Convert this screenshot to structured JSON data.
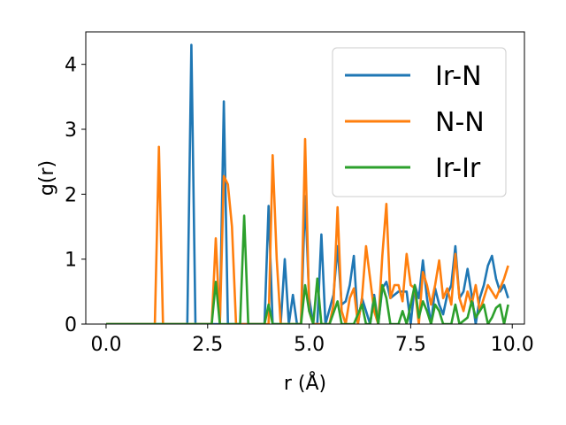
{
  "chart_data": {
    "type": "line",
    "title": "",
    "xlabel": "r (Å)",
    "ylabel": "g(r)",
    "xlim": [
      -0.5,
      10.3
    ],
    "ylim": [
      0,
      4.5
    ],
    "xticks": [
      0.0,
      2.5,
      5.0,
      7.5,
      10.0
    ],
    "xtick_labels": [
      "0.0",
      "2.5",
      "5.0",
      "7.5",
      "10.0"
    ],
    "yticks": [
      0,
      1,
      2,
      3,
      4
    ],
    "ytick_labels": [
      "0",
      "1",
      "2",
      "3",
      "4"
    ],
    "grid": false,
    "legend_position": "top-right",
    "series": [
      {
        "name": "Ir-N",
        "color": "#1f77b4",
        "points": [
          [
            0.0,
            0
          ],
          [
            1.9,
            0
          ],
          [
            2.0,
            0
          ],
          [
            2.1,
            4.3
          ],
          [
            2.2,
            0
          ],
          [
            2.8,
            0
          ],
          [
            2.9,
            3.43
          ],
          [
            3.0,
            0
          ],
          [
            3.9,
            0
          ],
          [
            4.0,
            1.82
          ],
          [
            4.1,
            0
          ],
          [
            4.3,
            0
          ],
          [
            4.4,
            1.0
          ],
          [
            4.5,
            0
          ],
          [
            4.6,
            0.45
          ],
          [
            4.7,
            0
          ],
          [
            4.8,
            0
          ],
          [
            4.9,
            1.97
          ],
          [
            5.0,
            0.4
          ],
          [
            5.1,
            0
          ],
          [
            5.2,
            0
          ],
          [
            5.3,
            1.38
          ],
          [
            5.4,
            0
          ],
          [
            5.6,
            0.45
          ],
          [
            5.7,
            1.2
          ],
          [
            5.8,
            0.3
          ],
          [
            5.9,
            0.35
          ],
          [
            6.0,
            0.6
          ],
          [
            6.1,
            1.05
          ],
          [
            6.2,
            0
          ],
          [
            6.3,
            0.4
          ],
          [
            6.5,
            0
          ],
          [
            6.6,
            0.45
          ],
          [
            6.7,
            0
          ],
          [
            6.8,
            0.55
          ],
          [
            6.9,
            0.65
          ],
          [
            7.0,
            0.4
          ],
          [
            7.1,
            0.45
          ],
          [
            7.2,
            0.5
          ],
          [
            7.4,
            0.5
          ],
          [
            7.5,
            0
          ],
          [
            7.6,
            0.6
          ],
          [
            7.7,
            0.4
          ],
          [
            7.8,
            0.98
          ],
          [
            7.9,
            0.4
          ],
          [
            8.0,
            0
          ],
          [
            8.1,
            0.55
          ],
          [
            8.2,
            0.3
          ],
          [
            8.3,
            0.15
          ],
          [
            8.4,
            0.45
          ],
          [
            8.5,
            0.6
          ],
          [
            8.6,
            1.2
          ],
          [
            8.7,
            0.4
          ],
          [
            8.8,
            0.5
          ],
          [
            8.9,
            0.85
          ],
          [
            9.0,
            0.45
          ],
          [
            9.1,
            0
          ],
          [
            9.2,
            0.4
          ],
          [
            9.3,
            0.6
          ],
          [
            9.4,
            0.9
          ],
          [
            9.5,
            1.05
          ],
          [
            9.6,
            0.7
          ],
          [
            9.7,
            0.5
          ],
          [
            9.8,
            0.6
          ],
          [
            9.9,
            0.4
          ]
        ]
      },
      {
        "name": "N-N",
        "color": "#ff7f0e",
        "points": [
          [
            0.0,
            0
          ],
          [
            1.2,
            0
          ],
          [
            1.3,
            2.73
          ],
          [
            1.4,
            0
          ],
          [
            2.6,
            0
          ],
          [
            2.7,
            1.32
          ],
          [
            2.8,
            0
          ],
          [
            2.9,
            2.28
          ],
          [
            3.0,
            2.15
          ],
          [
            3.1,
            1.5
          ],
          [
            3.2,
            0
          ],
          [
            4.0,
            0
          ],
          [
            4.1,
            2.6
          ],
          [
            4.2,
            1.0
          ],
          [
            4.3,
            0
          ],
          [
            4.8,
            0
          ],
          [
            4.9,
            2.85
          ],
          [
            5.0,
            0.2
          ],
          [
            5.1,
            0
          ],
          [
            5.5,
            0
          ],
          [
            5.6,
            0.3
          ],
          [
            5.7,
            1.8
          ],
          [
            5.8,
            0.2
          ],
          [
            5.9,
            0
          ],
          [
            6.0,
            0.4
          ],
          [
            6.1,
            0.55
          ],
          [
            6.2,
            0
          ],
          [
            6.3,
            0.4
          ],
          [
            6.4,
            1.2
          ],
          [
            6.5,
            0.7
          ],
          [
            6.6,
            0.2
          ],
          [
            6.7,
            0
          ],
          [
            6.8,
            1.05
          ],
          [
            6.9,
            1.85
          ],
          [
            7.0,
            0.4
          ],
          [
            7.1,
            0.6
          ],
          [
            7.2,
            0.6
          ],
          [
            7.3,
            0.35
          ],
          [
            7.4,
            1.08
          ],
          [
            7.5,
            0.6
          ],
          [
            7.6,
            0.55
          ],
          [
            7.7,
            0
          ],
          [
            7.8,
            0.8
          ],
          [
            7.9,
            0.6
          ],
          [
            8.0,
            0.3
          ],
          [
            8.1,
            0.6
          ],
          [
            8.2,
            0.98
          ],
          [
            8.3,
            0.4
          ],
          [
            8.4,
            0.55
          ],
          [
            8.5,
            0.3
          ],
          [
            8.6,
            1.08
          ],
          [
            8.7,
            0.4
          ],
          [
            8.8,
            0.2
          ],
          [
            8.9,
            0.5
          ],
          [
            9.0,
            0.3
          ],
          [
            9.1,
            0.6
          ],
          [
            9.2,
            0.2
          ],
          [
            9.3,
            0.4
          ],
          [
            9.4,
            0.6
          ],
          [
            9.5,
            0.5
          ],
          [
            9.6,
            0.4
          ],
          [
            9.7,
            0.55
          ],
          [
            9.8,
            0.7
          ],
          [
            9.9,
            0.9
          ]
        ]
      },
      {
        "name": "Ir-Ir",
        "color": "#2ca02c",
        "points": [
          [
            0.0,
            0
          ],
          [
            2.6,
            0
          ],
          [
            2.7,
            0.65
          ],
          [
            2.8,
            0
          ],
          [
            3.3,
            0
          ],
          [
            3.4,
            1.67
          ],
          [
            3.5,
            0
          ],
          [
            3.9,
            0
          ],
          [
            4.0,
            0.3
          ],
          [
            4.1,
            0
          ],
          [
            4.8,
            0
          ],
          [
            4.9,
            0.6
          ],
          [
            5.0,
            0.2
          ],
          [
            5.1,
            0
          ],
          [
            5.2,
            0.7
          ],
          [
            5.3,
            0
          ],
          [
            5.5,
            0
          ],
          [
            5.7,
            0.35
          ],
          [
            5.8,
            0
          ],
          [
            6.1,
            0
          ],
          [
            6.3,
            0.3
          ],
          [
            6.4,
            0
          ],
          [
            6.5,
            0
          ],
          [
            6.6,
            0.4
          ],
          [
            6.7,
            0
          ],
          [
            6.8,
            0.6
          ],
          [
            6.9,
            0.4
          ],
          [
            7.0,
            0
          ],
          [
            7.2,
            0
          ],
          [
            7.3,
            0.2
          ],
          [
            7.4,
            0
          ],
          [
            7.5,
            0.3
          ],
          [
            7.6,
            0.6
          ],
          [
            7.7,
            0.1
          ],
          [
            7.8,
            0.35
          ],
          [
            7.9,
            0.2
          ],
          [
            8.0,
            0
          ],
          [
            8.1,
            0.3
          ],
          [
            8.2,
            0.2
          ],
          [
            8.3,
            0
          ],
          [
            8.5,
            0
          ],
          [
            8.6,
            0.3
          ],
          [
            8.7,
            0
          ],
          [
            8.9,
            0.1
          ],
          [
            9.0,
            0.35
          ],
          [
            9.1,
            0.1
          ],
          [
            9.2,
            0.2
          ],
          [
            9.3,
            0.3
          ],
          [
            9.4,
            0
          ],
          [
            9.5,
            0.1
          ],
          [
            9.6,
            0.25
          ],
          [
            9.7,
            0.3
          ],
          [
            9.8,
            0
          ],
          [
            9.9,
            0.3
          ]
        ]
      }
    ]
  }
}
